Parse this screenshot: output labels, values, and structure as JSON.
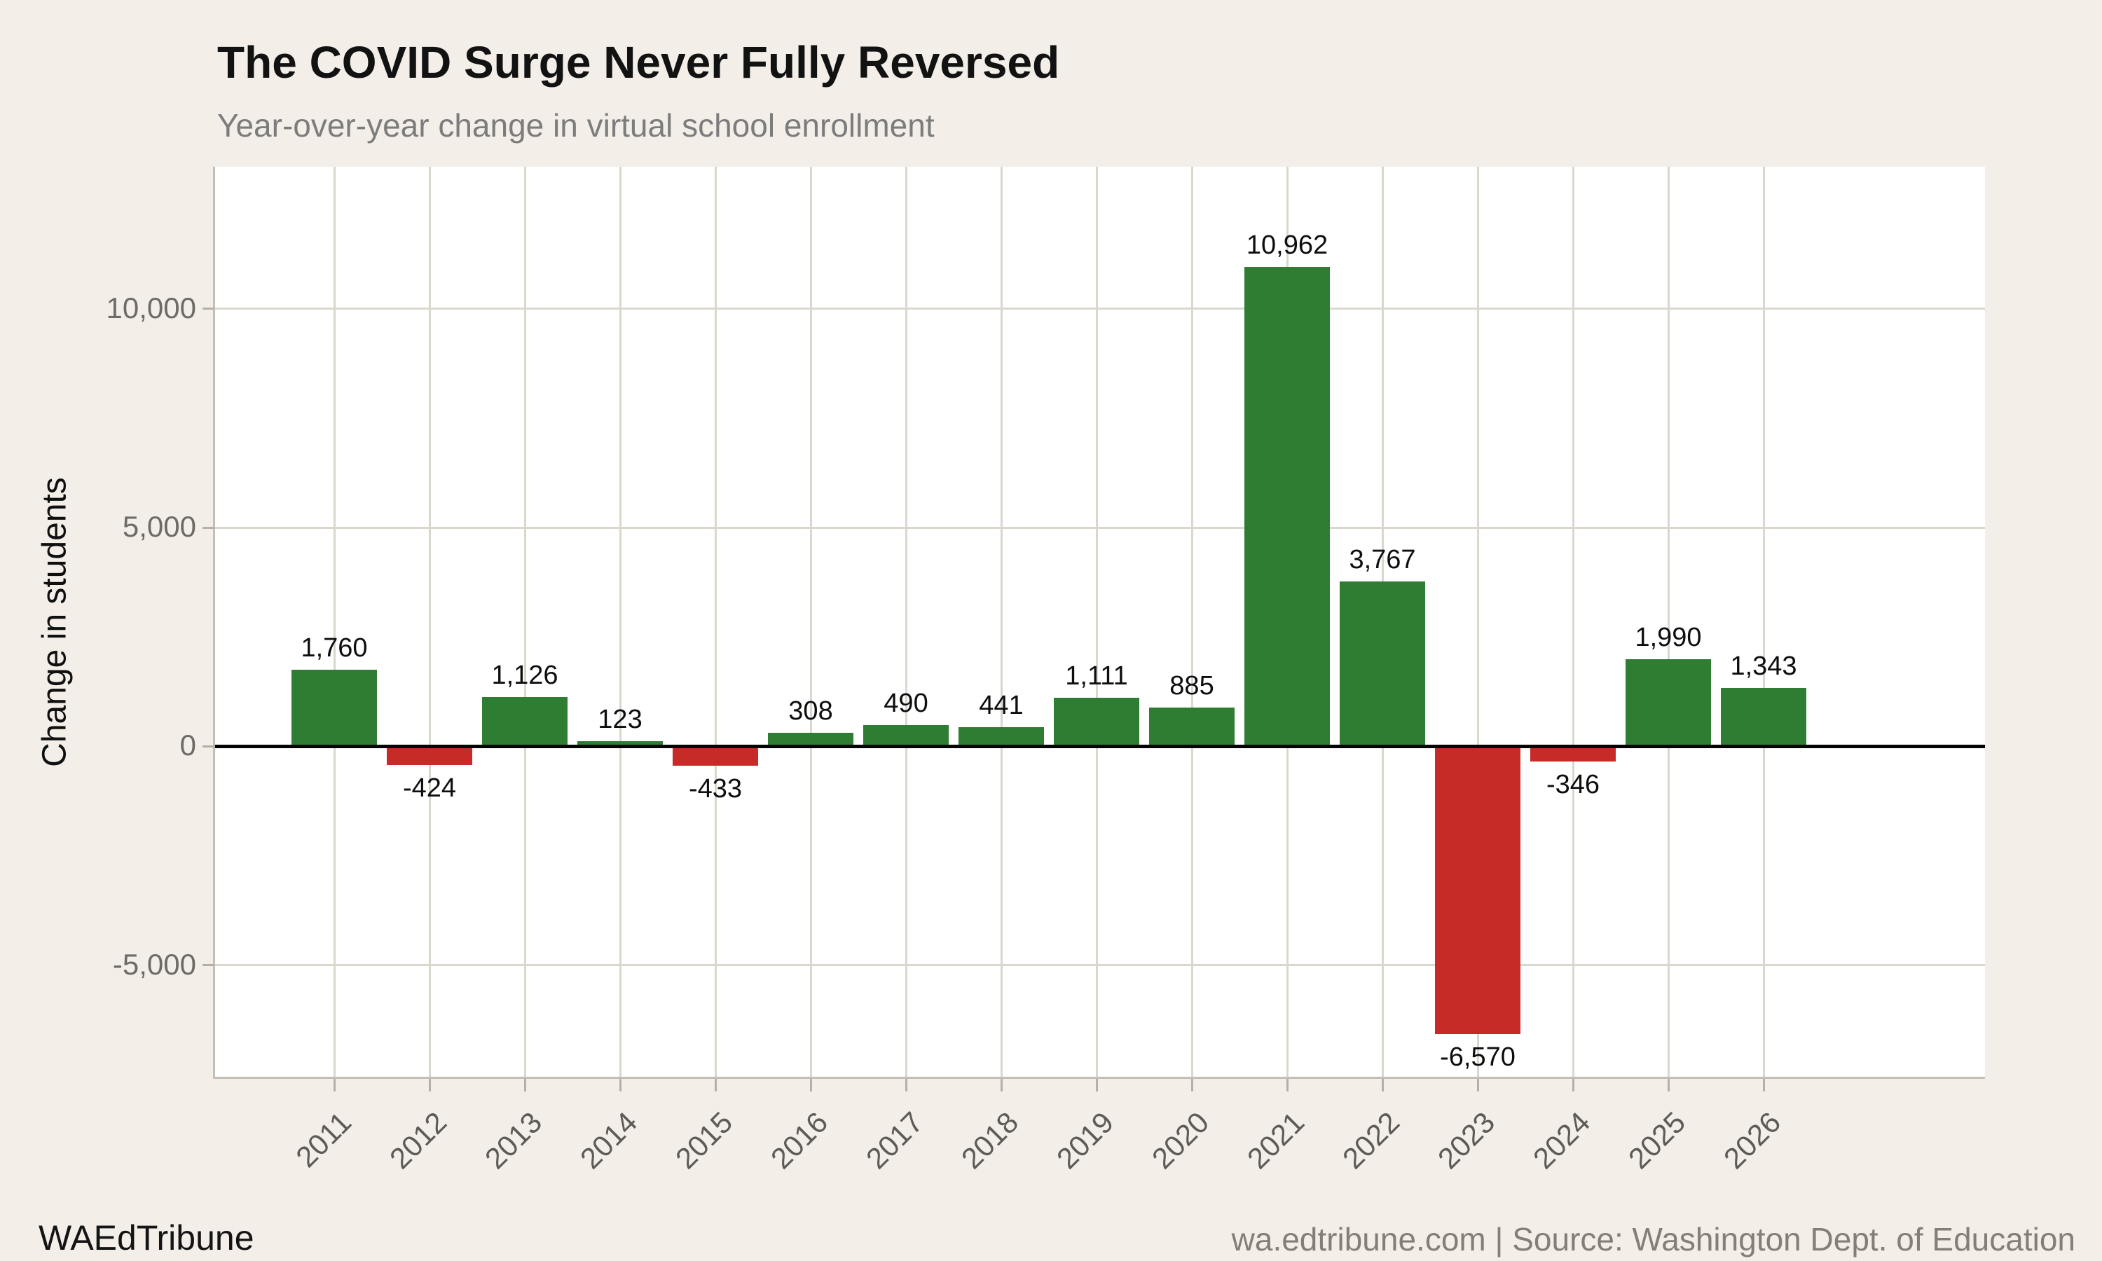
{
  "header": {
    "title": "The COVID Surge Never Fully Reversed",
    "subtitle": "Year-over-year change in virtual school enrollment"
  },
  "footer": {
    "brand": "WAEdTribune",
    "source": "wa.edtribune.com | Source: Washington Dept. of Education"
  },
  "chart_data": {
    "type": "bar",
    "title": "The COVID Surge Never Fully Reversed",
    "subtitle": "Year-over-year change in virtual school enrollment",
    "categories": [
      "2011",
      "2012",
      "2013",
      "2014",
      "2015",
      "2016",
      "2017",
      "2018",
      "2019",
      "2020",
      "2021",
      "2022",
      "2023",
      "2024",
      "2025",
      "2026"
    ],
    "values": [
      1760,
      -424,
      1126,
      123,
      -433,
      308,
      490,
      441,
      1111,
      885,
      10962,
      3767,
      -6570,
      -346,
      1990,
      1343
    ],
    "value_labels": [
      "1,760",
      "-424",
      "1,126",
      "123",
      "-433",
      "308",
      "490",
      "441",
      "1,111",
      "885",
      "10,962",
      "3,767",
      "-6,570",
      "-346",
      "1,990",
      "1,343"
    ],
    "xlabel": "",
    "ylabel": "Change in students",
    "ylim": [
      -7550,
      13250
    ],
    "yticks": [
      {
        "value": 10000,
        "label": "10,000"
      },
      {
        "value": 5000,
        "label": "5,000"
      },
      {
        "value": 0,
        "label": "0"
      },
      {
        "value": -5000,
        "label": "-5,000"
      }
    ],
    "grid": true,
    "legend": "none",
    "colors": {
      "positive": "#2e7d32",
      "negative": "#c62b27",
      "zero_line": "#050505"
    }
  }
}
